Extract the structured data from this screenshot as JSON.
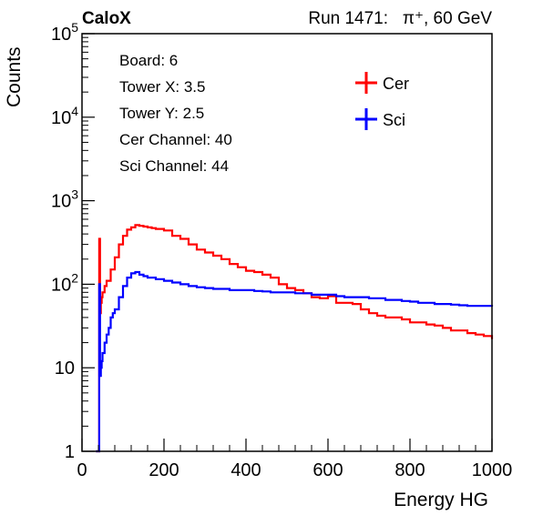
{
  "chart_data": {
    "type": "line",
    "experiment_label": "CaloX",
    "run_label": "Run 1471:   π⁺, 60 GeV",
    "xlabel": "Energy HG",
    "ylabel": "Counts",
    "xlim": [
      0,
      1000
    ],
    "ylim": [
      1,
      100000
    ],
    "yscale": "log",
    "x_ticks": [
      0,
      200,
      400,
      600,
      800,
      1000
    ],
    "y_ticks": [
      {
        "value": 1,
        "base": "1",
        "exp": ""
      },
      {
        "value": 10,
        "base": "10",
        "exp": ""
      },
      {
        "value": 100,
        "base": "10",
        "exp": "2"
      },
      {
        "value": 1000,
        "base": "10",
        "exp": "3"
      },
      {
        "value": 10000,
        "base": "10",
        "exp": "4"
      },
      {
        "value": 100000,
        "base": "10",
        "exp": "5"
      }
    ],
    "grid": false,
    "legend_position": "top-right",
    "info_box": [
      "Board: 6",
      "Tower X: 3.5",
      "Tower Y: 2.5",
      "Cer Channel: 40",
      "Sci Channel: 44"
    ],
    "series": [
      {
        "name": "Cer",
        "color": "#ff0000",
        "x": [
          34,
          36,
          38,
          40,
          42,
          44,
          46,
          48,
          50,
          55,
          60,
          70,
          80,
          90,
          100,
          110,
          120,
          130,
          140,
          150,
          160,
          170,
          180,
          200,
          220,
          240,
          260,
          280,
          300,
          320,
          340,
          360,
          380,
          400,
          420,
          440,
          460,
          480,
          500,
          520,
          540,
          560,
          580,
          600,
          620,
          640,
          660,
          680,
          700,
          720,
          740,
          760,
          780,
          800,
          820,
          840,
          860,
          880,
          900,
          920,
          940,
          960,
          980,
          1000
        ],
        "values": [
          1,
          1,
          1,
          1,
          350,
          45,
          60,
          70,
          80,
          95,
          110,
          150,
          210,
          300,
          380,
          450,
          480,
          510,
          500,
          490,
          480,
          470,
          460,
          440,
          380,
          350,
          300,
          260,
          240,
          220,
          200,
          175,
          160,
          145,
          140,
          130,
          120,
          100,
          90,
          85,
          78,
          70,
          68,
          72,
          60,
          60,
          58,
          50,
          45,
          42,
          40,
          40,
          38,
          35,
          35,
          33,
          32,
          30,
          28,
          28,
          26,
          25,
          24,
          22
        ]
      },
      {
        "name": "Sci",
        "color": "#0000ff",
        "x": [
          34,
          36,
          38,
          40,
          42,
          44,
          46,
          48,
          50,
          55,
          60,
          65,
          70,
          75,
          80,
          90,
          100,
          110,
          120,
          130,
          140,
          150,
          160,
          180,
          200,
          220,
          240,
          260,
          280,
          300,
          320,
          340,
          360,
          380,
          400,
          420,
          440,
          460,
          480,
          500,
          520,
          540,
          560,
          580,
          600,
          620,
          640,
          660,
          680,
          700,
          720,
          740,
          760,
          780,
          800,
          820,
          840,
          860,
          880,
          900,
          920,
          940,
          960,
          980,
          1000
        ],
        "values": [
          1,
          1,
          1,
          1,
          100,
          8,
          10,
          12,
          15,
          20,
          25,
          30,
          40,
          45,
          50,
          70,
          95,
          120,
          135,
          140,
          130,
          125,
          120,
          115,
          110,
          105,
          100,
          95,
          92,
          90,
          88,
          88,
          85,
          85,
          85,
          83,
          82,
          80,
          80,
          80,
          78,
          78,
          75,
          75,
          75,
          72,
          70,
          70,
          70,
          68,
          68,
          65,
          65,
          63,
          62,
          60,
          60,
          58,
          58,
          57,
          56,
          55,
          55,
          55,
          54
        ]
      }
    ]
  }
}
